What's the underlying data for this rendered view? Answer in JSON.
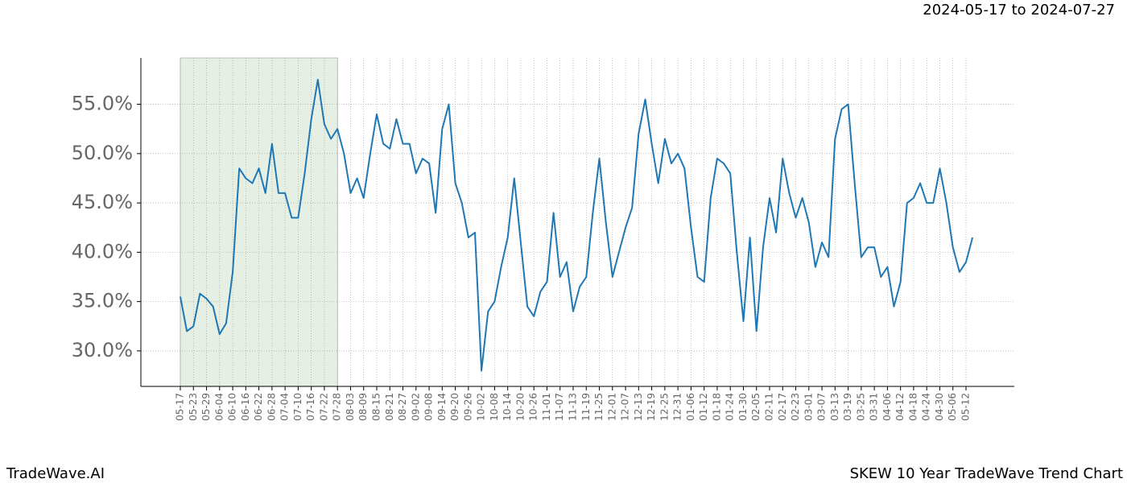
{
  "header": {
    "date_range": "2024-05-17 to 2024-07-27"
  },
  "footer": {
    "brand": "TradeWave.AI",
    "caption": "SKEW 10 Year TradeWave Trend Chart"
  },
  "chart_data": {
    "type": "line",
    "categories": [
      "05-17",
      null,
      "05-23",
      null,
      "05-29",
      null,
      "06-04",
      null,
      "06-10",
      null,
      "06-16",
      null,
      "06-22",
      null,
      "06-28",
      null,
      "07-04",
      null,
      "07-10",
      null,
      "07-16",
      null,
      "07-22",
      null,
      "07-28",
      null,
      "08-03",
      null,
      "08-09",
      null,
      "08-15",
      null,
      "08-21",
      null,
      "08-27",
      null,
      "09-02",
      null,
      "09-08",
      null,
      "09-14",
      null,
      "09-20",
      null,
      "09-26",
      null,
      "10-02",
      null,
      "10-08",
      null,
      "10-14",
      null,
      "10-20",
      null,
      "10-26",
      null,
      "11-01",
      null,
      "11-07",
      null,
      "11-13",
      null,
      "11-19",
      null,
      "11-25",
      null,
      "12-01",
      null,
      "12-07",
      null,
      "12-13",
      null,
      "12-19",
      null,
      "12-25",
      null,
      "12-31",
      null,
      "01-06",
      null,
      "01-12",
      null,
      "01-18",
      null,
      "01-24",
      null,
      "01-30",
      null,
      "02-05",
      null,
      "02-11",
      null,
      "02-17",
      null,
      "02-23",
      null,
      "03-01",
      null,
      "03-07",
      null,
      "03-13",
      null,
      "03-19",
      null,
      "03-25",
      null,
      "03-31",
      null,
      "04-06",
      null,
      "04-12",
      null,
      "04-18",
      null,
      "04-24",
      null,
      "04-30",
      null,
      "05-06",
      null,
      "05-12",
      null
    ],
    "series": [
      {
        "color": "#1f77b4",
        "values": [
          35.5,
          32,
          32.5,
          35.8,
          35.3,
          34.5,
          31.7,
          32.8,
          38,
          48.5,
          47.5,
          47,
          48.5,
          46,
          51,
          46,
          46,
          43.5,
          43.5,
          48,
          53.5,
          57.5,
          53,
          51.5,
          52.5,
          50,
          46,
          47.5,
          45.5,
          50,
          54,
          51,
          50.5,
          53.5,
          51,
          51,
          48,
          49.5,
          49,
          44,
          52.5,
          55,
          47,
          45,
          41.5,
          42,
          28,
          34,
          35,
          38.5,
          41.5,
          47.5,
          41,
          34.5,
          33.5,
          36,
          37,
          44,
          37.5,
          39,
          34,
          36.5,
          37.5,
          44,
          49.5,
          43,
          37.5,
          40,
          42.5,
          44.5,
          52,
          55.5,
          51,
          47,
          51.5,
          49,
          50,
          48.5,
          42.5,
          37.5,
          37,
          45.5,
          49.5,
          49,
          48,
          40,
          33,
          41.5,
          32,
          40.5,
          45.5,
          42,
          49.5,
          46,
          43.5,
          45.5,
          43,
          38.5,
          41,
          39.5,
          51.5,
          54.5,
          55,
          47,
          39.5,
          40.5,
          40.5,
          37.5,
          38.5,
          34.5,
          37,
          45,
          45.5,
          47,
          45,
          45,
          48.5,
          45,
          40.5,
          38,
          39,
          41.5
        ]
      }
    ],
    "ylim": [
      26.4,
      59.7
    ],
    "yticks": [
      {
        "value": 30,
        "label": "30.0%"
      },
      {
        "value": 35,
        "label": "35.0%"
      },
      {
        "value": 40,
        "label": "40.0%"
      },
      {
        "value": 45,
        "label": "45.0%"
      },
      {
        "value": 50,
        "label": "50.0%"
      },
      {
        "value": 55,
        "label": "55.0%"
      }
    ],
    "grid": true,
    "shade": {
      "from": 0,
      "to": 24,
      "color": "#e5efe3"
    }
  }
}
